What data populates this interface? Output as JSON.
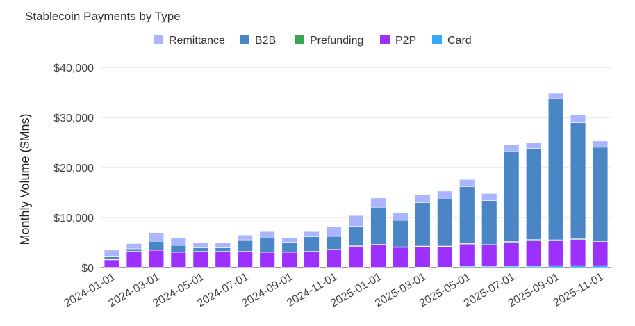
{
  "chart_data": {
    "type": "bar",
    "stacked": true,
    "title": "Stablecoin Payments by Type",
    "xlabel": "",
    "ylabel": "Monthly Volume ($Mns)",
    "ylim": [
      0,
      40000
    ],
    "yticks": [
      "$0",
      "$10,000",
      "$20,000",
      "$30,000",
      "$40,000"
    ],
    "grid": true,
    "legend_position": "top",
    "x_tick_labels": [
      "2024-01-01",
      "2024-03-01",
      "2024-05-01",
      "2024-07-01",
      "2024-09-01",
      "2024-11-01",
      "2025-01-01",
      "2025-03-01",
      "2025-05-01",
      "2025-07-01",
      "2025-09-01",
      "2025-11-01"
    ],
    "categories": [
      "2024-01-01",
      "2024-02-01",
      "2024-03-01",
      "2024-04-01",
      "2024-05-01",
      "2024-06-01",
      "2024-07-01",
      "2024-08-01",
      "2024-09-01",
      "2024-10-01",
      "2024-11-01",
      "2024-12-01",
      "2025-01-01",
      "2025-02-01",
      "2025-03-01",
      "2025-04-01",
      "2025-05-01",
      "2025-06-01",
      "2025-07-01",
      "2025-08-01",
      "2025-09-01",
      "2025-10-01",
      "2025-11-01"
    ],
    "series": [
      {
        "name": "Card",
        "color": "#33aaff",
        "values": [
          50,
          50,
          50,
          50,
          50,
          50,
          50,
          50,
          50,
          50,
          50,
          50,
          50,
          50,
          100,
          100,
          200,
          200,
          250,
          250,
          400,
          400,
          400
        ]
      },
      {
        "name": "P2P",
        "color": "#9b30ff",
        "values": [
          1500,
          3100,
          3400,
          3000,
          3100,
          3100,
          3100,
          3000,
          3000,
          3100,
          3500,
          4200,
          4500,
          4000,
          4100,
          4100,
          4500,
          4300,
          4800,
          5200,
          5000,
          5200,
          4800
        ]
      },
      {
        "name": "Prefunding",
        "color": "#3aa655",
        "values": [
          100,
          100,
          100,
          100,
          100,
          100,
          100,
          100,
          100,
          100,
          100,
          100,
          100,
          100,
          100,
          100,
          100,
          100,
          150,
          150,
          150,
          150,
          150
        ]
      },
      {
        "name": "B2B",
        "color": "#4a86c5",
        "values": [
          500,
          500,
          1700,
          1300,
          700,
          700,
          2300,
          2800,
          1900,
          2900,
          2600,
          3900,
          7400,
          5300,
          8700,
          9400,
          11400,
          8800,
          18100,
          18200,
          28200,
          23200,
          18700
        ]
      },
      {
        "name": "Remittance",
        "color": "#aab4ff",
        "values": [
          1350,
          1050,
          1750,
          1450,
          1050,
          1050,
          950,
          1250,
          950,
          1050,
          1850,
          2150,
          1850,
          1450,
          1500,
          1600,
          1400,
          1400,
          1300,
          1100,
          1100,
          1550,
          1250
        ]
      }
    ],
    "legend_order": [
      "Remittance",
      "B2B",
      "Prefunding",
      "P2P",
      "Card"
    ]
  }
}
